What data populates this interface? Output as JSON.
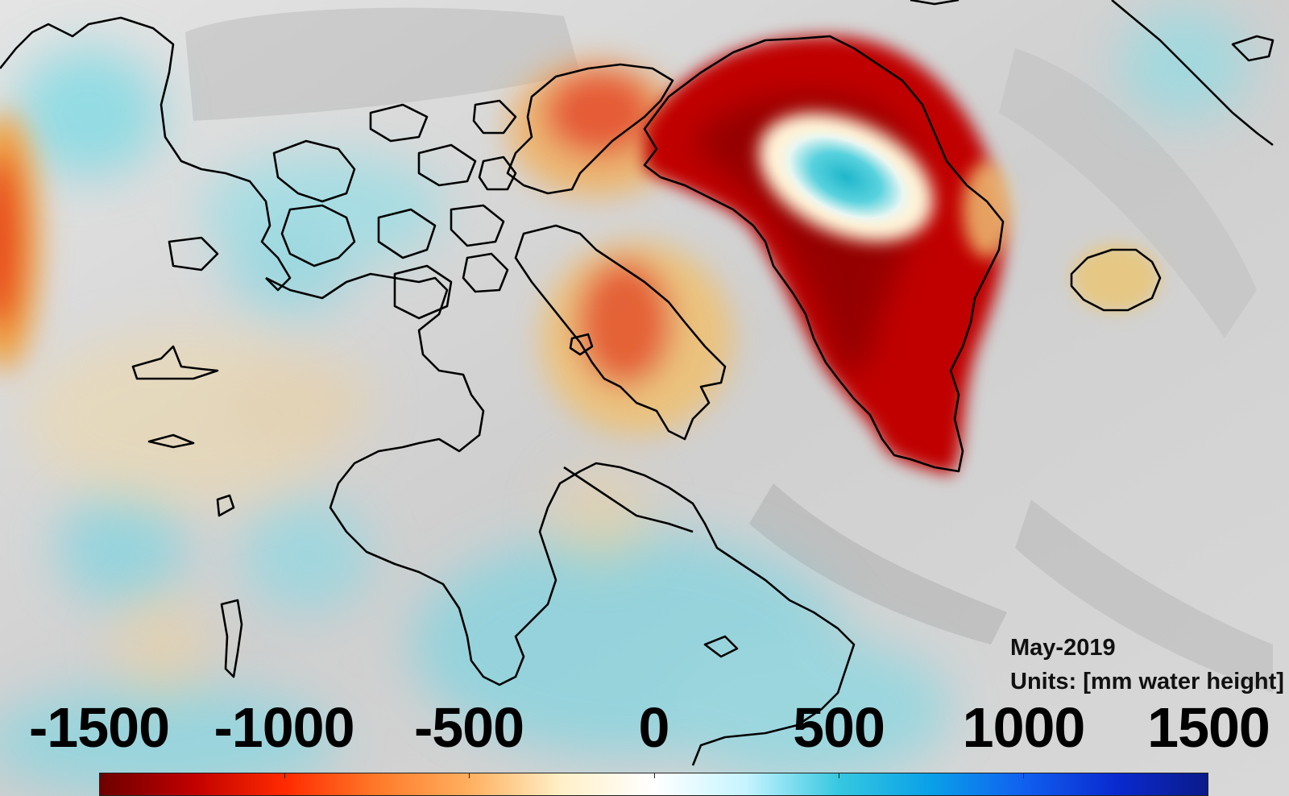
{
  "map": {
    "date_label": "May-2019",
    "units_label": "Units: [mm water height]"
  },
  "colorbar": {
    "min": -1500,
    "max": 1500,
    "tick_labels": [
      "-1500",
      "-1000",
      "-500",
      "0",
      "500",
      "1000",
      "1500"
    ],
    "tick_values": [
      -1500,
      -1000,
      -500,
      0,
      500,
      1000,
      1500
    ],
    "colors": [
      "#6e0000",
      "#c00000",
      "#ff2a00",
      "#ff7a2a",
      "#ffb060",
      "#fff0c8",
      "#ffffff",
      "#c6f4ff",
      "#36c8e0",
      "#0aa0e8",
      "#1060f0",
      "#0a2ad0",
      "#0a1a8a"
    ]
  },
  "legend_colors": {
    "mass_loss": "#c00000",
    "mass_gain": "#36c8e0",
    "coastline": "#000000",
    "land_base": "#d0d0d0"
  }
}
